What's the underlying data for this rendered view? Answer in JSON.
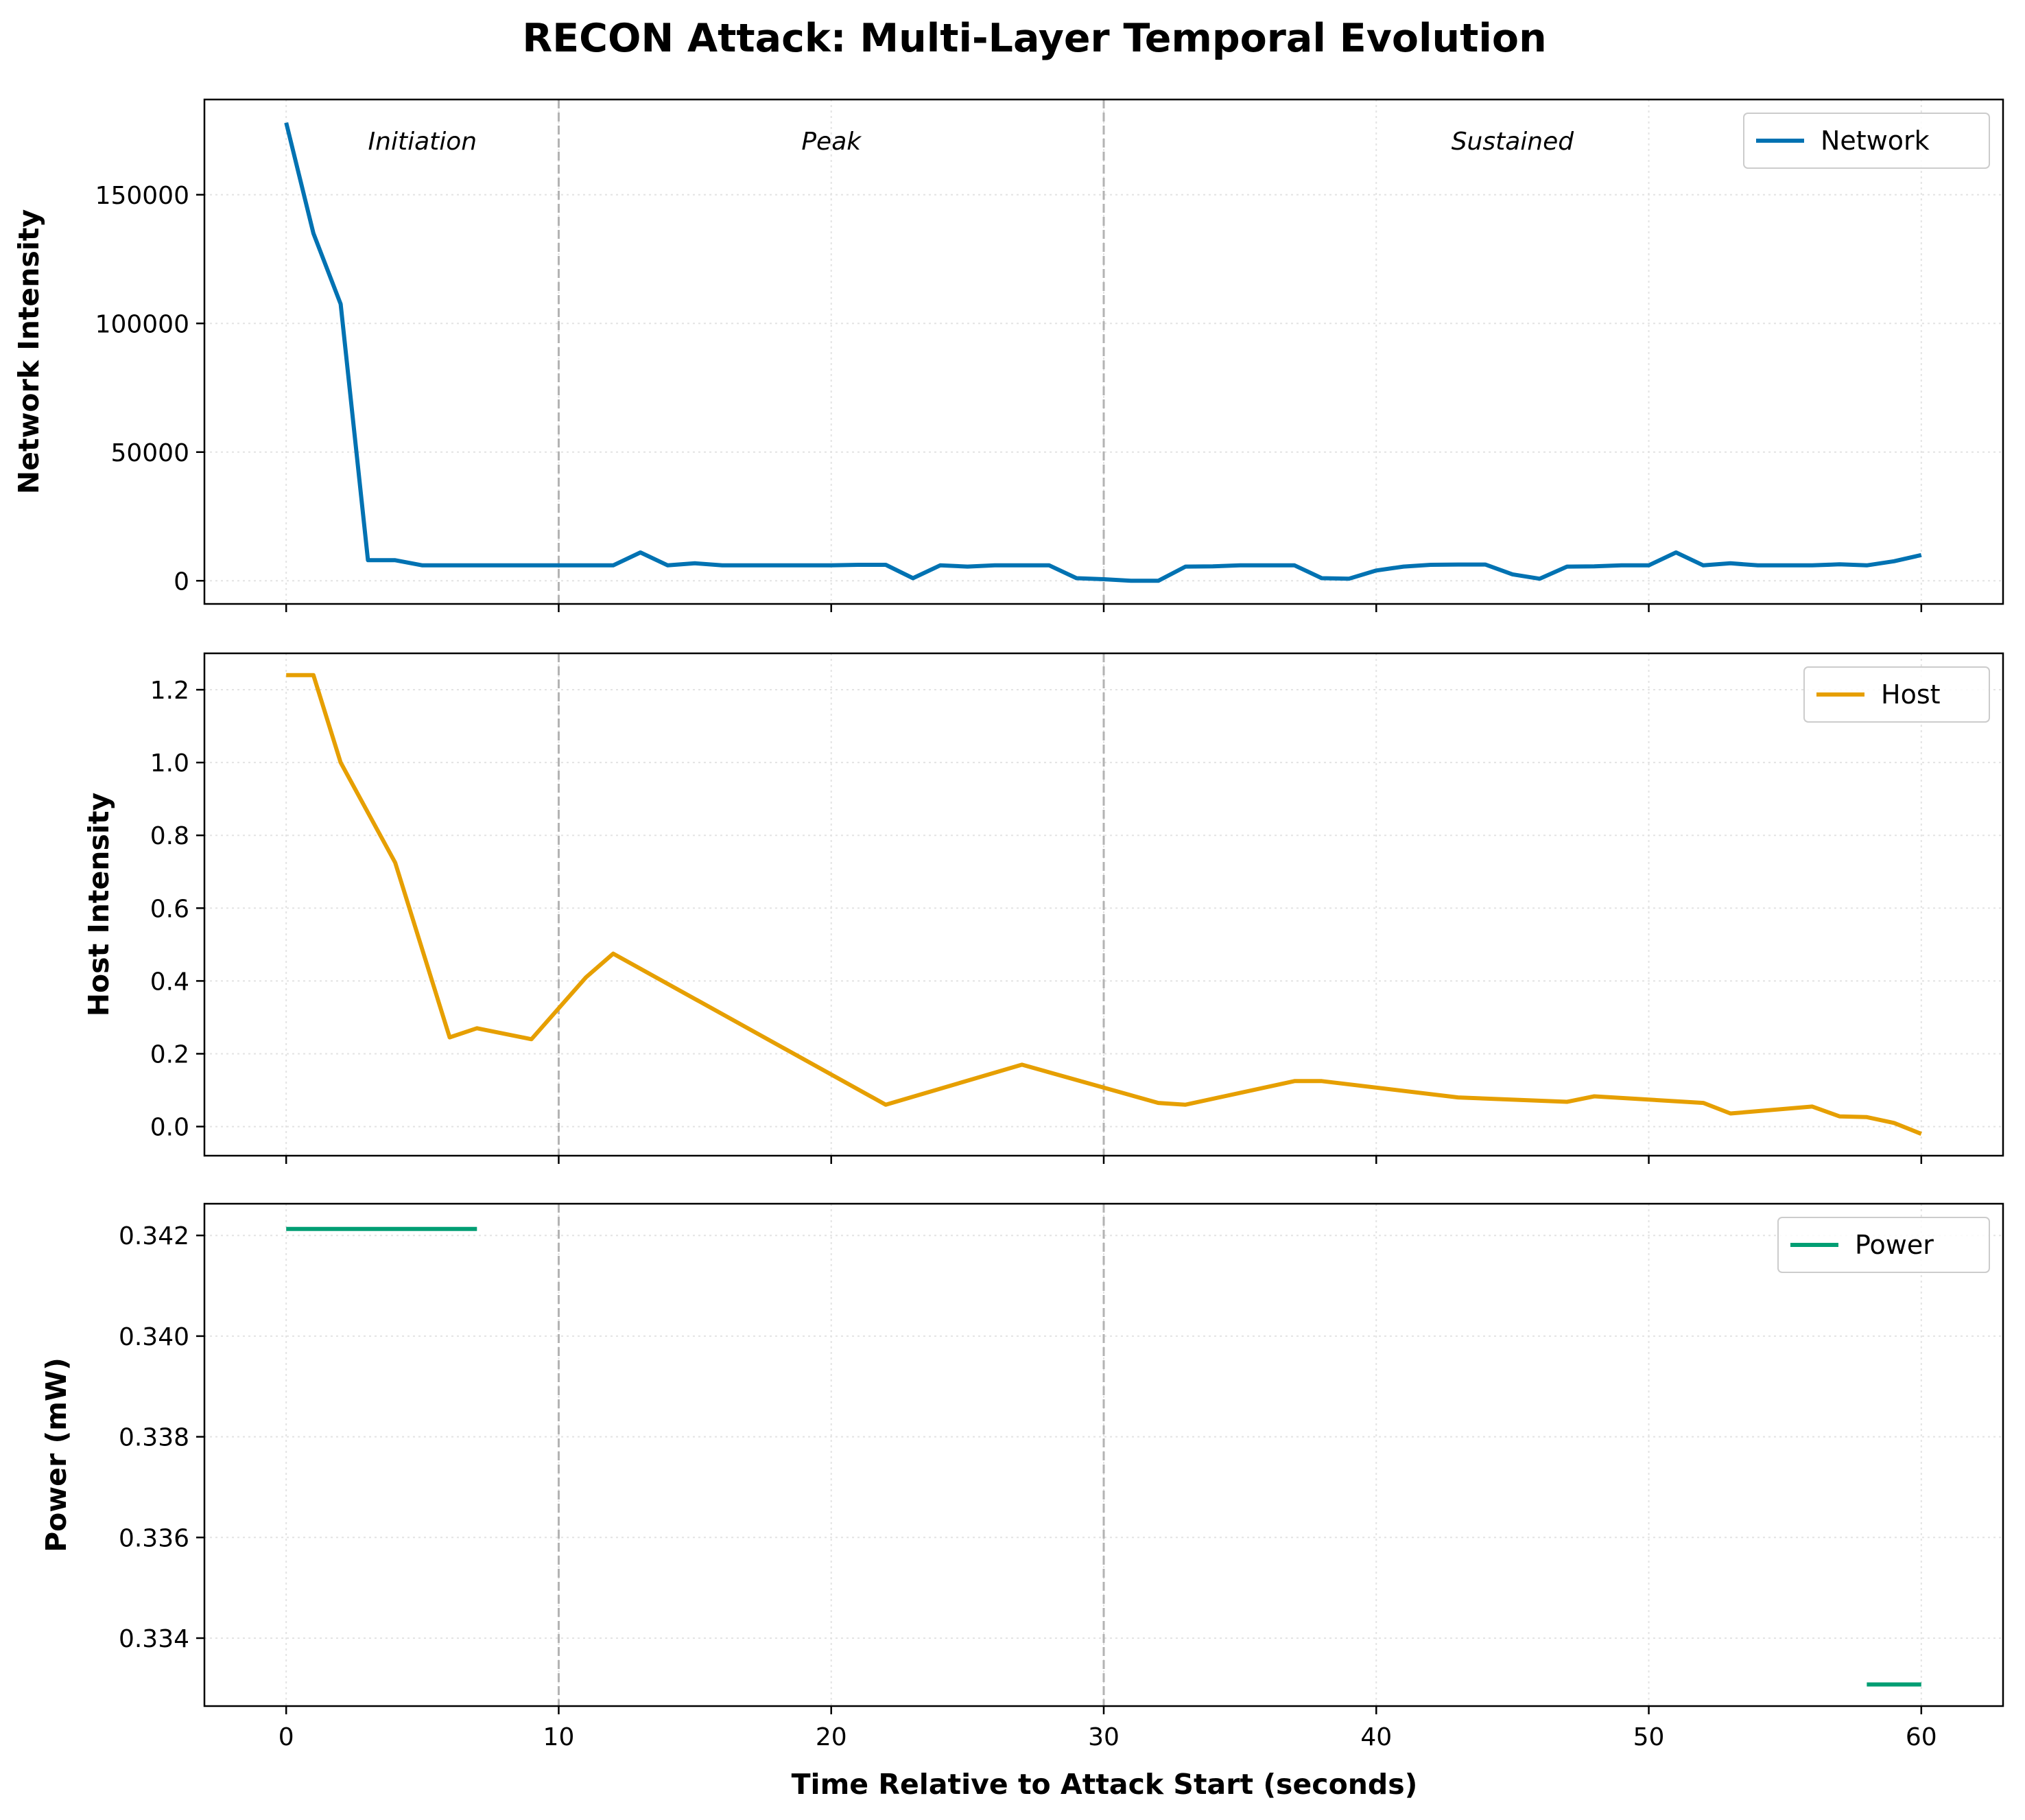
{
  "chart_data": {
    "type": "line",
    "title": "RECON Attack: Multi-Layer Temporal Evolution",
    "xlabel": "Time Relative to Attack Start (seconds)",
    "xlim": [
      -3,
      63
    ],
    "x_ticks": [
      0,
      10,
      20,
      30,
      40,
      50,
      60
    ],
    "phase_boundaries": [
      10,
      30
    ],
    "grid": true,
    "legend_position": "upper right",
    "panels": [
      {
        "ylabel": "Network Intensity",
        "ylim": [
          -9000,
          187000
        ],
        "y_ticks": [
          0,
          50000,
          100000,
          150000
        ],
        "phase_labels": [
          {
            "text": "Initiation",
            "x": 5
          },
          {
            "text": "Peak",
            "x": 20
          },
          {
            "text": "Sustained",
            "x": 45
          }
        ],
        "series": [
          {
            "name": "Network",
            "color": "#0072B2",
            "points": [
              [
                0,
                178000
              ],
              [
                1,
                135000
              ],
              [
                2,
                107500
              ],
              [
                3,
                8000
              ],
              [
                4,
                8000
              ],
              [
                5,
                6000
              ],
              [
                6,
                6000
              ],
              [
                7,
                6000
              ],
              [
                8,
                6000
              ],
              [
                9,
                6000
              ],
              [
                10,
                6000
              ],
              [
                11,
                6000
              ],
              [
                12,
                6000
              ],
              [
                13,
                11000
              ],
              [
                14,
                6000
              ],
              [
                15,
                6800
              ],
              [
                16,
                6000
              ],
              [
                17,
                6000
              ],
              [
                18,
                6000
              ],
              [
                19,
                6000
              ],
              [
                20,
                6000
              ],
              [
                21,
                6200
              ],
              [
                22,
                6200
              ],
              [
                23,
                1000
              ],
              [
                24,
                6000
              ],
              [
                25,
                5500
              ],
              [
                26,
                6000
              ],
              [
                27,
                6000
              ],
              [
                28,
                6000
              ],
              [
                29,
                1000
              ],
              [
                30,
                600
              ],
              [
                31,
                0
              ],
              [
                32,
                0
              ],
              [
                33,
                5500
              ],
              [
                34,
                5600
              ],
              [
                35,
                6000
              ],
              [
                36,
                6000
              ],
              [
                37,
                6000
              ],
              [
                38,
                1000
              ],
              [
                39,
                800
              ],
              [
                40,
                4000
              ],
              [
                41,
                5500
              ],
              [
                42,
                6200
              ],
              [
                43,
                6300
              ],
              [
                44,
                6300
              ],
              [
                45,
                2500
              ],
              [
                46,
                800
              ],
              [
                47,
                5500
              ],
              [
                48,
                5600
              ],
              [
                49,
                6000
              ],
              [
                50,
                6000
              ],
              [
                51,
                11000
              ],
              [
                52,
                6000
              ],
              [
                53,
                6800
              ],
              [
                54,
                6000
              ],
              [
                55,
                6000
              ],
              [
                56,
                6000
              ],
              [
                57,
                6400
              ],
              [
                58,
                6000
              ],
              [
                59,
                7600
              ],
              [
                60,
                10000
              ]
            ]
          }
        ]
      },
      {
        "ylabel": "Host Intensity",
        "ylim": [
          -0.08,
          1.3
        ],
        "y_ticks": [
          0.0,
          0.2,
          0.4,
          0.6,
          0.8,
          1.0,
          1.2
        ],
        "y_tick_labels": [
          "0.0",
          "0.2",
          "0.4",
          "0.6",
          "0.8",
          "1.0",
          "1.2"
        ],
        "series": [
          {
            "name": "Host",
            "color": "#E69F00",
            "points": [
              [
                0,
                1.24
              ],
              [
                1,
                1.24
              ],
              [
                2,
                1.0
              ],
              [
                4,
                0.725
              ],
              [
                6,
                0.245
              ],
              [
                7,
                0.27
              ],
              [
                9,
                0.24
              ],
              [
                11,
                0.41
              ],
              [
                12,
                0.475
              ],
              [
                22,
                0.06
              ],
              [
                27,
                0.17
              ],
              [
                32,
                0.065
              ],
              [
                33,
                0.06
              ],
              [
                37,
                0.125
              ],
              [
                38,
                0.125
              ],
              [
                43,
                0.08
              ],
              [
                47,
                0.068
              ],
              [
                48,
                0.083
              ],
              [
                52,
                0.065
              ],
              [
                53,
                0.036
              ],
              [
                56,
                0.055
              ],
              [
                57,
                0.028
              ],
              [
                58,
                0.026
              ],
              [
                59,
                0.01
              ],
              [
                60,
                -0.02
              ]
            ]
          }
        ]
      },
      {
        "ylabel": "Power (mW)",
        "ylim": [
          0.33265,
          0.34263
        ],
        "y_ticks": [
          0.334,
          0.336,
          0.338,
          0.34,
          0.342
        ],
        "y_tick_labels": [
          "0.334",
          "0.336",
          "0.338",
          "0.340",
          "0.342"
        ],
        "series": [
          {
            "name": "Power",
            "color": "#009E73",
            "segments": [
              [
                [
                  0,
                  0.34213
                ],
                [
                  7,
                  0.34213
                ]
              ],
              [
                [
                  58,
                  0.33308
                ],
                [
                  60,
                  0.33308
                ]
              ]
            ]
          }
        ]
      }
    ]
  }
}
